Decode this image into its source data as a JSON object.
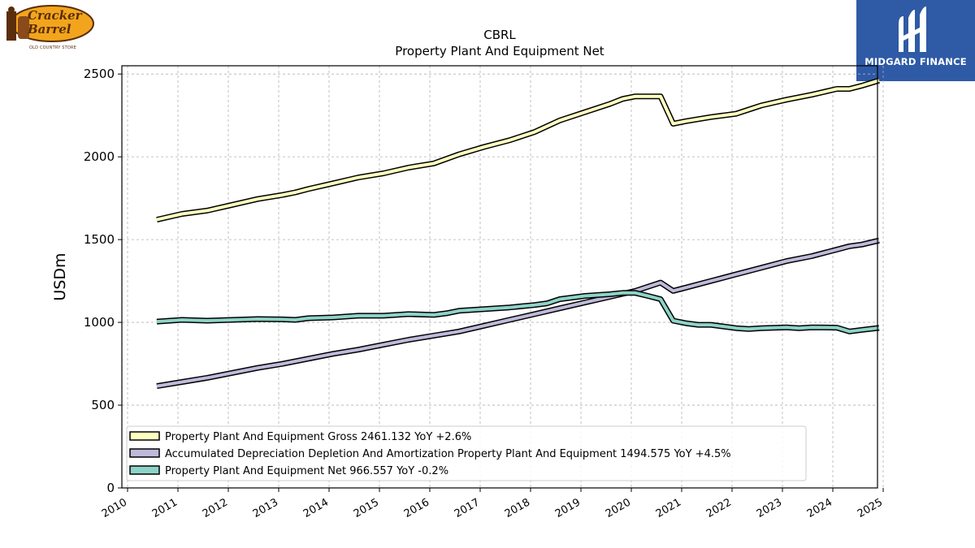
{
  "logos": {
    "left_brand": "Cracker Barrel",
    "left_brand_line1": "Cracker",
    "left_brand_line2": "Barrel",
    "left_sub": "OLD COUNTRY STORE",
    "right_brand": "MIDGARD FINANCE"
  },
  "chart_data": {
    "type": "line",
    "title": "CBRL",
    "subtitle": "Property Plant And Equipment Net",
    "ylabel": "USDm",
    "xlabel": "",
    "xlim": [
      2010,
      2025
    ],
    "ylim": [
      0,
      2550
    ],
    "x_ticks": [
      "2010",
      "2011",
      "2012",
      "2013",
      "2014",
      "2015",
      "2016",
      "2017",
      "2018",
      "2019",
      "2020",
      "2021",
      "2022",
      "2023",
      "2024",
      "2025"
    ],
    "y_ticks": [
      "0",
      "500",
      "1000",
      "1500",
      "2000",
      "2500"
    ],
    "grid": true,
    "legend_position": "lower-left",
    "series": [
      {
        "name": "Property Plant And Equipment Gross",
        "legend_label": "Property Plant And Equipment Gross  2461.132 YoY +2.6%",
        "color": "#ffffc0",
        "x": [
          2010.58,
          2011.08,
          2011.58,
          2012.08,
          2012.58,
          2013.08,
          2013.33,
          2013.58,
          2014.08,
          2014.58,
          2015.08,
          2015.58,
          2016.08,
          2016.58,
          2017.08,
          2017.58,
          2018.08,
          2018.33,
          2018.58,
          2019.08,
          2019.58,
          2019.83,
          2020.08,
          2020.33,
          2020.58,
          2020.83,
          2021.08,
          2021.58,
          2022.08,
          2022.33,
          2022.58,
          2023.08,
          2023.58,
          2024.08,
          2024.33,
          2024.58,
          2024.92
        ],
        "values": [
          1620,
          1655,
          1675,
          1710,
          1745,
          1770,
          1785,
          1805,
          1840,
          1875,
          1900,
          1935,
          1960,
          2015,
          2060,
          2100,
          2150,
          2185,
          2220,
          2270,
          2320,
          2350,
          2365,
          2365,
          2365,
          2200,
          2215,
          2240,
          2260,
          2285,
          2310,
          2345,
          2375,
          2410,
          2410,
          2430,
          2461.132
        ]
      },
      {
        "name": "Accumulated Depreciation Depletion And Amortization Property Plant And Equipment",
        "legend_label": "Accumulated Depreciation Depletion And Amortization Property Plant And Equipment  1494.575 YoY +4.5%",
        "color": "#bebada",
        "x": [
          2010.58,
          2011.08,
          2011.58,
          2012.08,
          2012.58,
          2013.08,
          2013.58,
          2014.08,
          2014.58,
          2015.08,
          2015.58,
          2016.08,
          2016.58,
          2017.08,
          2017.58,
          2018.08,
          2018.58,
          2019.08,
          2019.58,
          2020.08,
          2020.33,
          2020.58,
          2020.83,
          2021.08,
          2021.58,
          2022.08,
          2022.58,
          2023.08,
          2023.58,
          2024.08,
          2024.33,
          2024.58,
          2024.92
        ],
        "values": [
          615,
          640,
          665,
          695,
          725,
          750,
          780,
          810,
          835,
          865,
          895,
          920,
          945,
          980,
          1015,
          1050,
          1085,
          1120,
          1155,
          1190,
          1215,
          1240,
          1190,
          1210,
          1250,
          1290,
          1330,
          1370,
          1400,
          1440,
          1460,
          1470,
          1494.575
        ]
      },
      {
        "name": "Property Plant And Equipment Net",
        "legend_label": "Property Plant And Equipment Net  966.557 YoY -0.2%",
        "color": "#8dd3c7",
        "x": [
          2010.58,
          2011.08,
          2011.58,
          2012.08,
          2012.58,
          2013.08,
          2013.33,
          2013.58,
          2014.08,
          2014.58,
          2015.08,
          2015.58,
          2016.08,
          2016.33,
          2016.58,
          2017.08,
          2017.58,
          2018.08,
          2018.33,
          2018.58,
          2019.08,
          2019.58,
          2019.83,
          2020.08,
          2020.33,
          2020.58,
          2020.83,
          2021.08,
          2021.33,
          2021.58,
          2022.08,
          2022.33,
          2022.58,
          2023.08,
          2023.33,
          2023.58,
          2024.08,
          2024.33,
          2024.58,
          2024.92
        ],
        "values": [
          1005,
          1015,
          1010,
          1015,
          1020,
          1018,
          1015,
          1025,
          1030,
          1040,
          1040,
          1050,
          1045,
          1055,
          1070,
          1080,
          1090,
          1105,
          1115,
          1140,
          1160,
          1170,
          1178,
          1178,
          1160,
          1140,
          1010,
          995,
          985,
          985,
          965,
          960,
          965,
          970,
          965,
          970,
          968,
          945,
          955,
          966.557
        ]
      }
    ]
  }
}
